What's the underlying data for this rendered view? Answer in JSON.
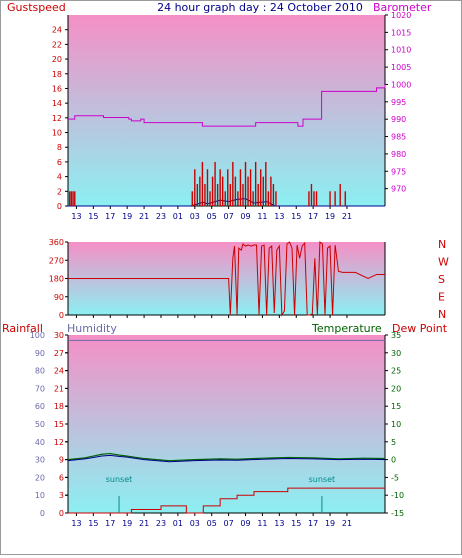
{
  "title": "24 hour graph day : 24 October 2010",
  "colors": {
    "red": "#cc0000",
    "magenta": "#cc00cc",
    "navy": "#00008b",
    "green": "#006400",
    "slate": "#6a6aa8",
    "teal": "#008b8b",
    "bg_top": "#f58fc6",
    "bg_bottom": "#8ceff2"
  },
  "x_ticks": [
    "13",
    "15",
    "17",
    "19",
    "21",
    "23",
    "01",
    "03",
    "05",
    "07",
    "09",
    "11",
    "13",
    "15",
    "17",
    "19",
    "21"
  ],
  "chart_data": [
    {
      "type": "line",
      "ylabel": "Gustspeed",
      "y2label": "Barometer",
      "ylim": [
        0,
        26
      ],
      "y_ticks": [
        0,
        2,
        4,
        6,
        8,
        10,
        12,
        14,
        16,
        18,
        20,
        22,
        24
      ],
      "y2lim": [
        965,
        1020
      ],
      "y2_ticks": [
        970,
        975,
        980,
        985,
        990,
        995,
        1000,
        1005,
        1010,
        1015,
        1020
      ],
      "series": [
        {
          "role": "barometer",
          "axis": "right",
          "x_hours": [
            0,
            0.8,
            4.2,
            7.2,
            7.5,
            8.6,
            9.0,
            9.8,
            15.5,
            15.9,
            18.5,
            21.6,
            22.2,
            26.8,
            27.2,
            27.4,
            27.8,
            29.6,
            30,
            32.5,
            36.5,
            37.5
          ],
          "values": [
            990,
            991,
            990.5,
            990,
            989.5,
            990,
            989,
            989,
            989,
            988,
            988,
            988,
            989,
            989,
            988,
            988,
            990,
            990,
            998,
            998,
            999,
            1000
          ]
        },
        {
          "role": "wind-average",
          "axis": "left",
          "x_hours": [
            0,
            14.5,
            16.0,
            16.5,
            18.0,
            19.0,
            20.0,
            21.0,
            22.0,
            23.5,
            24.5,
            37.5
          ],
          "values": [
            0,
            0,
            0.5,
            0.3,
            0.8,
            0.6,
            0.9,
            1.0,
            0.4,
            0.6,
            0,
            0
          ]
        }
      ],
      "gust_bars": {
        "x_hours": [
          0.2,
          0.4,
          0.6,
          0.8,
          14.7,
          15.0,
          15.3,
          15.6,
          15.9,
          16.2,
          16.5,
          16.8,
          17.1,
          17.4,
          17.7,
          18.0,
          18.3,
          18.6,
          18.9,
          19.2,
          19.5,
          19.8,
          20.1,
          20.4,
          20.7,
          21.0,
          21.3,
          21.6,
          21.9,
          22.2,
          22.5,
          22.8,
          23.1,
          23.4,
          23.7,
          24.0,
          24.3,
          24.6,
          28.5,
          28.8,
          29.1,
          29.4,
          31.0,
          31.6,
          32.2,
          32.8
        ],
        "values": [
          2,
          2,
          2,
          2,
          2,
          5,
          3,
          4,
          6,
          3,
          5,
          2,
          4,
          6,
          3,
          5,
          4,
          2,
          5,
          3,
          6,
          4,
          2,
          5,
          3,
          6,
          4,
          5,
          2,
          6,
          3,
          5,
          4,
          6,
          2,
          4,
          3,
          2,
          2,
          3,
          2,
          2,
          2,
          2,
          3,
          2
        ]
      }
    },
    {
      "type": "line",
      "ylabel": "",
      "y2label": "",
      "ylim": [
        0,
        360
      ],
      "y_ticks": [
        0,
        90,
        180,
        270,
        360
      ],
      "compass": [
        "N",
        "W",
        "S",
        "E",
        "N"
      ],
      "series": [
        {
          "role": "wind-direction",
          "x_hours": [
            0,
            0.3,
            7.0,
            12.0,
            17.0,
            19.0,
            19.2,
            19.5,
            19.7,
            20.0,
            20.2,
            20.5,
            20.7,
            21.0,
            21.3,
            21.7,
            22.0,
            22.3,
            22.6,
            22.9,
            23.2,
            23.5,
            23.8,
            24.1,
            24.4,
            24.7,
            25.0,
            25.3,
            25.6,
            25.9,
            26.2,
            26.5,
            26.8,
            27.1,
            27.4,
            27.7,
            28.0,
            28.3,
            28.6,
            28.9,
            29.2,
            29.5,
            29.8,
            30.1,
            30.4,
            30.7,
            31.0,
            31.3,
            31.6,
            32.0,
            32.5,
            33.0,
            34.0,
            35.5,
            36.5,
            37.5
          ],
          "values": [
            180,
            180,
            180,
            180,
            180,
            180,
            0,
            280,
            340,
            0,
            330,
            320,
            350,
            340,
            345,
            340,
            345,
            345,
            0,
            340,
            345,
            0,
            330,
            340,
            10,
            320,
            340,
            0,
            20,
            350,
            360,
            330,
            0,
            345,
            280,
            340,
            355,
            0,
            0,
            5,
            280,
            0,
            360,
            350,
            0,
            330,
            340,
            0,
            345,
            215,
            210,
            210,
            210,
            180,
            200,
            200
          ]
        }
      ]
    },
    {
      "type": "line",
      "ylabel": "Rainfall",
      "humidity_label": "Humidity",
      "temperature_label": "Temperature",
      "dewpoint_label": "Dew Point",
      "ylim": [
        0,
        100
      ],
      "y_ticks": [
        0,
        10,
        20,
        30,
        40,
        50,
        60,
        70,
        80,
        90,
        100
      ],
      "humidity_ticks": [
        0,
        3,
        6,
        9,
        12,
        15,
        18,
        21,
        24,
        27,
        30
      ],
      "y2lim": [
        -15,
        35
      ],
      "y2_ticks": [
        -15,
        -10,
        -5,
        0,
        5,
        10,
        15,
        20,
        25,
        30,
        35
      ],
      "annotations": [
        {
          "text": "sunset",
          "x_hour": 5.8
        },
        {
          "text": "sunset",
          "x_hour": 29.8
        }
      ],
      "series": [
        {
          "role": "humidity",
          "axis": "left-100",
          "x_hours": [
            0,
            37.5
          ],
          "values": [
            97,
            97
          ]
        },
        {
          "role": "temperature",
          "axis": "right",
          "x_hours": [
            0,
            2.0,
            3.0,
            4.0,
            5.0,
            6.0,
            7.0,
            9.0,
            12.0,
            15.0,
            18.0,
            20.0,
            23.0,
            26.0,
            29.0,
            32.0,
            35.0,
            37.5
          ],
          "values": [
            0,
            0.5,
            1.0,
            1.5,
            1.7,
            1.3,
            1.0,
            0.3,
            -0.3,
            0,
            0.2,
            0.1,
            0.4,
            0.6,
            0.5,
            0.2,
            0.4,
            0.3
          ]
        },
        {
          "role": "dewpoint",
          "axis": "right",
          "x_hours": [
            0,
            2.0,
            3.0,
            4.0,
            5.0,
            6.0,
            7.0,
            9.0,
            12.0,
            15.0,
            18.0,
            20.0,
            23.0,
            26.0,
            29.0,
            32.0,
            35.0,
            37.5
          ],
          "values": [
            -0.3,
            0.2,
            0.6,
            1.0,
            1.2,
            0.9,
            0.7,
            0,
            -0.6,
            -0.3,
            -0.1,
            -0.2,
            0.1,
            0.3,
            0.2,
            0,
            0.1,
            0
          ]
        },
        {
          "role": "rainfall",
          "axis": "left",
          "x_hours": [
            0,
            7.0,
            7.5,
            10.0,
            11.0,
            13.0,
            14.0,
            15.0,
            16.0,
            18.0,
            20.0,
            22.0,
            26.0,
            31.0,
            37.5
          ],
          "values": [
            0,
            0,
            2,
            2,
            4,
            4,
            0,
            0,
            4,
            8,
            10,
            12,
            14,
            14,
            14
          ]
        }
      ]
    }
  ]
}
